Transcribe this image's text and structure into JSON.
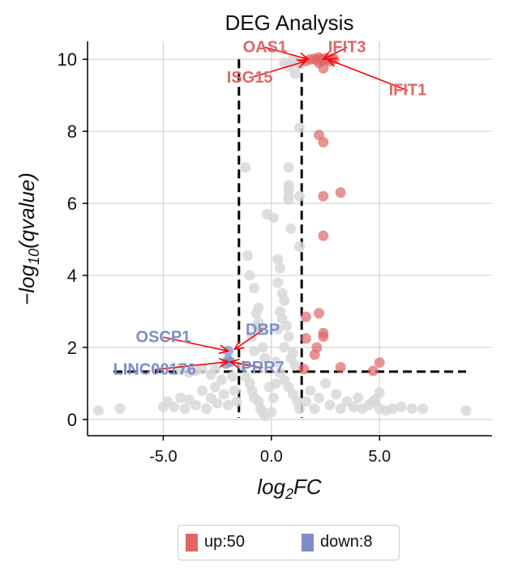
{
  "chart_data": {
    "type": "scatter",
    "title": "DEG Analysis",
    "xlabel": "log2FC",
    "ylabel": "-log10(qvalue)",
    "xlim": [
      -8.5,
      10.2
    ],
    "ylim": [
      -0.45,
      10.5
    ],
    "x_ticks": [
      -5.0,
      0.0,
      5.0
    ],
    "x_tick_labels": [
      "-5.0",
      "0.0",
      "5.0"
    ],
    "y_ticks": [
      0,
      2,
      4,
      6,
      8,
      10
    ],
    "y_tick_labels": [
      "0",
      "2",
      "4",
      "6",
      "8",
      "10"
    ],
    "grid": true,
    "thresholds": {
      "fc_low": -1.5,
      "fc_high": 1.4,
      "q": 1.33
    },
    "colors": {
      "up": "#e06666",
      "down": "#7b8ec8",
      "ns": "#d8d8d8",
      "arrow": "#ff0000"
    },
    "series": [
      {
        "name": "up",
        "count_label": "up:50",
        "color": "#e06666",
        "points": [
          [
            1.6,
            9.95
          ],
          [
            1.8,
            10.0
          ],
          [
            2.0,
            10.02
          ],
          [
            2.1,
            9.98
          ],
          [
            2.2,
            10.05
          ],
          [
            2.3,
            10.0
          ],
          [
            2.4,
            9.97
          ],
          [
            2.5,
            10.03
          ],
          [
            2.6,
            10.0
          ],
          [
            2.7,
            9.95
          ],
          [
            2.8,
            10.02
          ],
          [
            2.9,
            10.0
          ],
          [
            2.2,
            9.9
          ],
          [
            2.4,
            9.75
          ],
          [
            2.2,
            7.9
          ],
          [
            2.4,
            7.7
          ],
          [
            2.4,
            6.2
          ],
          [
            3.2,
            6.3
          ],
          [
            2.4,
            5.1
          ],
          [
            1.6,
            2.85
          ],
          [
            2.2,
            2.95
          ],
          [
            1.6,
            2.25
          ],
          [
            2.4,
            2.3
          ],
          [
            2.4,
            2.4
          ],
          [
            2.1,
            2.0
          ],
          [
            2.0,
            1.8
          ],
          [
            3.2,
            1.45
          ],
          [
            5.0,
            1.58
          ],
          [
            4.7,
            1.35
          ],
          [
            1.5,
            1.4
          ]
        ]
      },
      {
        "name": "down",
        "count_label": "down:8",
        "color": "#7b8ec8",
        "points": [
          [
            -2.0,
            1.9
          ],
          [
            -2.1,
            1.55
          ],
          [
            -1.9,
            1.6
          ],
          [
            -2.0,
            1.65
          ]
        ]
      },
      {
        "name": "ns",
        "color": "#d8d8d8",
        "points": [
          [
            -8.0,
            0.25
          ],
          [
            -7.0,
            0.3
          ],
          [
            -5.0,
            0.35
          ],
          [
            -4.8,
            0.5
          ],
          [
            -4.5,
            0.35
          ],
          [
            -4.2,
            0.6
          ],
          [
            -4.0,
            0.3
          ],
          [
            -3.8,
            0.55
          ],
          [
            -3.5,
            0.4
          ],
          [
            -3.2,
            0.8
          ],
          [
            -3.0,
            0.3
          ],
          [
            -2.8,
            0.6
          ],
          [
            -2.6,
            0.9
          ],
          [
            -2.5,
            0.45
          ],
          [
            -2.3,
            1.1
          ],
          [
            -2.2,
            0.7
          ],
          [
            -2.0,
            0.4
          ],
          [
            -1.8,
            1.2
          ],
          [
            -1.7,
            0.8
          ],
          [
            -1.6,
            0.5
          ],
          [
            -4.2,
            1.4
          ],
          [
            -3.8,
            1.3
          ],
          [
            -3.5,
            1.35
          ],
          [
            -3.2,
            1.4
          ],
          [
            -2.8,
            1.25
          ],
          [
            -2.6,
            1.4
          ],
          [
            -1.2,
            7.0
          ],
          [
            -1.1,
            4.55
          ],
          [
            -1.0,
            4.0
          ],
          [
            -0.8,
            3.65
          ],
          [
            -0.7,
            2.95
          ],
          [
            -0.6,
            3.1
          ],
          [
            -0.7,
            2.6
          ],
          [
            -0.6,
            2.7
          ],
          [
            -0.5,
            2.5
          ],
          [
            -0.9,
            2.3
          ],
          [
            -0.8,
            1.9
          ],
          [
            -0.4,
            2.0
          ],
          [
            -0.3,
            1.7
          ],
          [
            -1.3,
            1.5
          ],
          [
            -1.2,
            1.2
          ],
          [
            -1.0,
            1.0
          ],
          [
            -0.9,
            0.8
          ],
          [
            -0.8,
            0.6
          ],
          [
            -0.6,
            0.5
          ],
          [
            -0.5,
            0.3
          ],
          [
            -0.4,
            0.2
          ],
          [
            -0.3,
            0.1
          ],
          [
            -0.2,
            5.7
          ],
          [
            0.1,
            5.6
          ],
          [
            0.3,
            4.45
          ],
          [
            0.4,
            4.2
          ],
          [
            0.3,
            3.8
          ],
          [
            0.5,
            3.5
          ],
          [
            0.6,
            3.3
          ],
          [
            0.4,
            3.0
          ],
          [
            0.5,
            2.8
          ],
          [
            0.7,
            2.6
          ],
          [
            0.3,
            2.5
          ],
          [
            0.8,
            2.3
          ],
          [
            0.6,
            2.0
          ],
          [
            1.0,
            1.85
          ],
          [
            0.9,
            1.7
          ],
          [
            1.1,
            1.5
          ],
          [
            0.2,
            1.6
          ],
          [
            0.4,
            1.3
          ],
          [
            0.6,
            1.1
          ],
          [
            0.8,
            0.9
          ],
          [
            1.0,
            0.7
          ],
          [
            1.2,
            0.5
          ],
          [
            1.3,
            0.3
          ],
          [
            0.0,
            0.2
          ],
          [
            0.1,
            0.6
          ],
          [
            -0.1,
            0.9
          ],
          [
            0.2,
            1.0
          ],
          [
            0.8,
            7.0
          ],
          [
            0.8,
            6.5
          ],
          [
            0.8,
            6.4
          ],
          [
            0.8,
            6.2
          ],
          [
            0.8,
            6.1
          ],
          [
            1.3,
            6.2
          ],
          [
            0.9,
            5.3
          ],
          [
            1.3,
            4.8
          ],
          [
            1.3,
            8.1
          ],
          [
            0.6,
            9.9
          ],
          [
            0.8,
            9.8
          ],
          [
            1.0,
            10.0
          ],
          [
            1.2,
            9.95
          ],
          [
            1.3,
            9.85
          ],
          [
            1.1,
            9.6
          ],
          [
            1.6,
            0.5
          ],
          [
            1.8,
            0.8
          ],
          [
            2.0,
            0.3
          ],
          [
            2.2,
            0.6
          ],
          [
            2.5,
            1.0
          ],
          [
            2.7,
            0.4
          ],
          [
            3.0,
            0.7
          ],
          [
            3.2,
            0.3
          ],
          [
            3.5,
            0.5
          ],
          [
            3.8,
            0.35
          ],
          [
            4.0,
            0.6
          ],
          [
            4.2,
            0.3
          ],
          [
            4.5,
            0.4
          ],
          [
            4.8,
            0.55
          ],
          [
            5.0,
            0.3
          ],
          [
            5.3,
            0.25
          ],
          [
            5.6,
            0.3
          ],
          [
            6.0,
            0.35
          ],
          [
            6.5,
            0.3
          ],
          [
            7.0,
            0.3
          ],
          [
            9.0,
            0.25
          ],
          [
            5.0,
            0.75
          ],
          [
            4.7,
            0.5
          ]
        ]
      }
    ],
    "annotations": [
      {
        "label": "OAS1",
        "color": "up",
        "point": [
          1.7,
          10.0
        ],
        "text_at": [
          -0.3,
          10.2
        ],
        "arrow": true
      },
      {
        "label": "IFIT3",
        "color": "up",
        "point": [
          2.4,
          10.0
        ],
        "text_at": [
          3.5,
          10.2
        ],
        "arrow": true
      },
      {
        "label": "ISG15",
        "color": "up",
        "point": [
          1.6,
          9.95
        ],
        "text_at": [
          -1.0,
          9.35
        ],
        "arrow": true
      },
      {
        "label": "IFIT1",
        "color": "up",
        "point": [
          2.6,
          10.0
        ],
        "text_at": [
          6.3,
          9.0
        ],
        "arrow": true
      },
      {
        "label": "OSCP1",
        "color": "down",
        "point": [
          -2.0,
          1.9
        ],
        "text_at": [
          -5.0,
          2.15
        ],
        "arrow": true
      },
      {
        "label": "DBP",
        "color": "down",
        "point": [
          -1.7,
          1.95
        ],
        "text_at": [
          -0.4,
          2.35
        ],
        "arrow": true
      },
      {
        "label": "LINC00176",
        "color": "down",
        "point": [
          -2.0,
          1.6
        ],
        "text_at": [
          -5.4,
          1.25
        ],
        "arrow": true
      },
      {
        "label": "PRR7",
        "color": "down",
        "point": [
          -1.9,
          1.6
        ],
        "text_at": [
          -0.4,
          1.3
        ],
        "arrow": true
      }
    ]
  },
  "legend": {
    "up": {
      "label": "up:50",
      "color": "#e06666"
    },
    "down": {
      "label": "down:8",
      "color": "#7b8ec8"
    }
  }
}
